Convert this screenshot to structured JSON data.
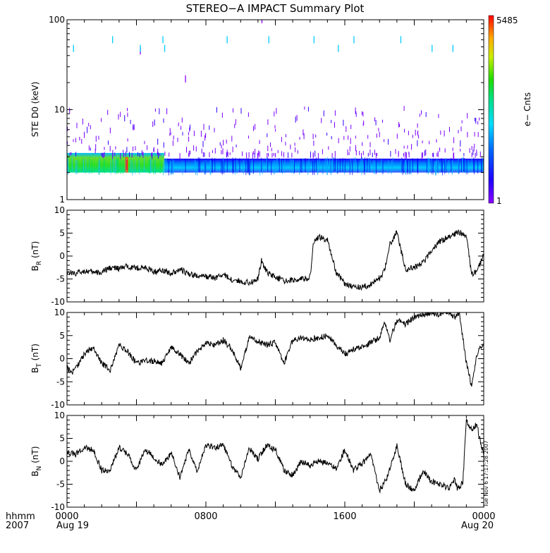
{
  "title": "STEREO−A IMPACT Summary Plot",
  "x_axis": {
    "ticks": [
      "0000",
      "0800",
      "1600",
      "0000"
    ],
    "tick_hours": [
      0,
      8,
      16,
      24
    ],
    "date_labels": [
      "Aug 19",
      "Aug 20"
    ],
    "row_label_1": "hhmm",
    "row_label_2": "2007"
  },
  "stamp": "Tue Nov  6 17:17:28 2007",
  "colors": {
    "axis": "#000000",
    "line": "#000000"
  },
  "chart_data": [
    {
      "type": "heatmap",
      "ylabel": "STE D0 (keV)",
      "yscale": "log",
      "ylim": [
        1,
        100
      ],
      "yticks": [
        "1",
        "10",
        "100"
      ],
      "xlim_hours": [
        0,
        24
      ],
      "colorbar": {
        "label": "e− Cnts",
        "min_label": "1",
        "max_label": "5485",
        "min": 1,
        "max": 5485
      },
      "band_energy_keV": [
        2,
        3.3
      ],
      "bursts": [
        {
          "t": 0.35,
          "keV": 48,
          "c": "cyan"
        },
        {
          "t": 2.6,
          "keV": 60,
          "c": "cyan"
        },
        {
          "t": 4.2,
          "keV": 45,
          "c": "purple"
        },
        {
          "t": 4.2,
          "keV": 48,
          "c": "cyan"
        },
        {
          "t": 5.5,
          "keV": 60,
          "c": "cyan"
        },
        {
          "t": 5.6,
          "keV": 48,
          "c": "cyan"
        },
        {
          "t": 6.8,
          "keV": 22,
          "c": "purple"
        },
        {
          "t": 9.2,
          "keV": 60,
          "c": "cyan"
        },
        {
          "t": 11.6,
          "keV": 60,
          "c": "cyan"
        },
        {
          "t": 11.2,
          "keV": 100,
          "c": "purple"
        },
        {
          "t": 14.2,
          "keV": 60,
          "c": "cyan"
        },
        {
          "t": 15.6,
          "keV": 48,
          "c": "cyan"
        },
        {
          "t": 16.5,
          "keV": 60,
          "c": "cyan"
        },
        {
          "t": 19.2,
          "keV": 60,
          "c": "cyan"
        },
        {
          "t": 21.0,
          "keV": 48,
          "c": "cyan"
        },
        {
          "t": 22.2,
          "keV": 48,
          "c": "cyan"
        }
      ]
    },
    {
      "type": "line",
      "name": "B_R",
      "ylabel_main": "B",
      "ylabel_sub": "R",
      "ylabel_unit": " (nT)",
      "ylim": [
        -10,
        10
      ],
      "yticks": [
        -10,
        -5,
        0,
        5,
        10
      ],
      "x_hours": [
        0,
        0.5,
        1,
        1.5,
        2,
        2.5,
        3,
        3.5,
        4,
        4.5,
        5,
        5.5,
        6,
        6.5,
        7,
        7.5,
        8,
        8.5,
        9,
        9.5,
        10,
        10.5,
        11,
        11.2,
        11.5,
        12,
        12.5,
        13,
        13.5,
        14,
        14.2,
        14.5,
        15,
        15.5,
        16,
        16.5,
        17,
        17.5,
        18,
        18.3,
        18.6,
        19,
        19.5,
        20,
        20.5,
        21,
        21.5,
        22,
        22.3,
        22.5,
        23,
        23.3,
        23.6,
        24
      ],
      "values": [
        -3.5,
        -3.8,
        -3.2,
        -3.6,
        -3.6,
        -2.5,
        -2.8,
        -2.2,
        -2.6,
        -2.5,
        -3.5,
        -3.0,
        -3.8,
        -2.8,
        -4.0,
        -4.3,
        -4.5,
        -4.8,
        -4.0,
        -5.2,
        -5.5,
        -5.8,
        -5.0,
        -1.0,
        -3.5,
        -4.5,
        -5.5,
        -5.2,
        -5.0,
        -4.6,
        3.0,
        4.2,
        3.5,
        -3.5,
        -6.0,
        -6.7,
        -6.8,
        -6.2,
        -4.8,
        -3.0,
        2.5,
        5.2,
        -3.0,
        -2.5,
        -1.5,
        1.2,
        3.3,
        4.2,
        4.8,
        5.3,
        4.5,
        -4.0,
        -3.5,
        0.5
      ]
    },
    {
      "type": "line",
      "name": "B_T",
      "ylabel_main": "B",
      "ylabel_sub": "T",
      "ylabel_unit": " (nT)",
      "ylim": [
        -10,
        10
      ],
      "yticks": [
        -10,
        -5,
        0,
        5,
        10
      ],
      "x_hours": [
        0,
        0.3,
        0.6,
        1,
        1.5,
        2,
        2.5,
        3,
        3.5,
        4,
        4.5,
        5,
        5.5,
        6,
        6.5,
        7,
        7.5,
        8,
        8.5,
        9,
        9.5,
        10,
        10.5,
        11,
        11.5,
        12,
        12.5,
        13,
        13.5,
        14,
        14.5,
        15,
        15.5,
        16,
        16.5,
        17,
        17.5,
        18,
        18.3,
        18.6,
        19,
        19.5,
        20,
        20.5,
        21,
        21.5,
        22,
        22.3,
        22.6,
        23,
        23.3,
        23.6,
        24
      ],
      "values": [
        -2.0,
        -3.0,
        -1.5,
        1.0,
        2.5,
        -1.0,
        -2.5,
        3.0,
        1.5,
        -1.0,
        -0.5,
        -0.5,
        -1.0,
        2.5,
        1.0,
        -1.0,
        1.5,
        3.5,
        3.0,
        4.0,
        2.0,
        -2.0,
        4.5,
        3.8,
        3.0,
        3.5,
        -1.0,
        4.0,
        4.5,
        4.2,
        4.5,
        5.0,
        3.0,
        1.0,
        2.0,
        2.5,
        3.5,
        4.5,
        8.0,
        4.0,
        8.5,
        7.5,
        9.0,
        9.5,
        10.0,
        9.5,
        10.5,
        9.0,
        9.8,
        -1.0,
        -6.0,
        1.0,
        3.5
      ]
    },
    {
      "type": "line",
      "name": "B_N",
      "ylabel_main": "B",
      "ylabel_sub": "N",
      "ylabel_unit": " (nT)",
      "ylim": [
        -10,
        10
      ],
      "yticks": [
        -10,
        -5,
        0,
        5,
        10
      ],
      "x_hours": [
        0,
        0.5,
        1,
        1.5,
        2,
        2.5,
        3,
        3.5,
        4,
        4.5,
        5,
        5.5,
        6,
        6.5,
        7,
        7.5,
        8,
        8.5,
        9,
        9.5,
        10,
        10.5,
        11,
        11.5,
        12,
        12.5,
        13,
        13.5,
        14,
        14.5,
        15,
        15.5,
        16,
        16.5,
        17,
        17.5,
        18,
        18.5,
        19,
        19.5,
        20,
        20.5,
        21,
        21.5,
        22,
        22.3,
        22.5,
        22.8,
        23,
        23.3,
        23.6,
        24
      ],
      "values": [
        2.0,
        1.5,
        3.0,
        2.5,
        -2.0,
        -1.8,
        3.0,
        1.5,
        -2.0,
        2.5,
        1.0,
        -1.0,
        2.0,
        -3.5,
        2.5,
        -2.0,
        3.5,
        3.0,
        3.5,
        -1.0,
        -3.5,
        3.0,
        0.5,
        3.5,
        2.5,
        -2.0,
        -3.0,
        0.0,
        -1.0,
        0.0,
        -0.5,
        -1.5,
        2.5,
        -2.0,
        -0.5,
        1.5,
        -6.5,
        -3.0,
        3.5,
        -5.0,
        -6.5,
        -2.0,
        -4.5,
        -5.0,
        -6.0,
        -4.0,
        -6.0,
        -4.5,
        9.0,
        7.0,
        8.0,
        1.0
      ]
    }
  ]
}
